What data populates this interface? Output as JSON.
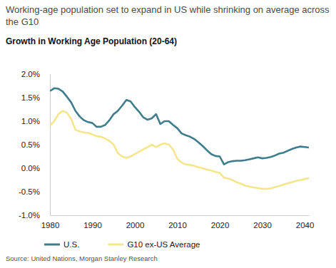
{
  "chart_data": {
    "type": "line",
    "title": "Working-age population set to expand in US while shrinking on average across the G10",
    "subtitle": "Growth in Working Age Population (20-64)",
    "source": "Source: United Nations, Morgan Stanley Research",
    "x": [
      1980,
      1981,
      1982,
      1983,
      1984,
      1985,
      1986,
      1987,
      1988,
      1989,
      1990,
      1991,
      1992,
      1993,
      1994,
      1995,
      1996,
      1997,
      1998,
      1999,
      2000,
      2001,
      2002,
      2003,
      2004,
      2005,
      2006,
      2007,
      2008,
      2009,
      2010,
      2011,
      2012,
      2013,
      2014,
      2015,
      2016,
      2017,
      2018,
      2019,
      2020,
      2021,
      2022,
      2023,
      2024,
      2025,
      2026,
      2027,
      2028,
      2029,
      2030,
      2031,
      2032,
      2033,
      2034,
      2035,
      2036,
      2037,
      2038,
      2039,
      2040,
      2041
    ],
    "series": [
      {
        "name": "U.S.",
        "color": "#3e7d8c",
        "values": [
          1.64,
          1.7,
          1.69,
          1.63,
          1.52,
          1.4,
          1.22,
          1.1,
          1.02,
          0.98,
          0.96,
          0.88,
          0.88,
          0.92,
          1.02,
          1.15,
          1.22,
          1.33,
          1.45,
          1.42,
          1.3,
          1.2,
          1.08,
          1.03,
          1.06,
          1.15,
          0.94,
          1.0,
          1.0,
          0.92,
          0.85,
          0.74,
          0.7,
          0.67,
          0.62,
          0.55,
          0.47,
          0.38,
          0.3,
          0.26,
          0.25,
          0.08,
          0.13,
          0.15,
          0.16,
          0.16,
          0.17,
          0.19,
          0.21,
          0.23,
          0.21,
          0.22,
          0.24,
          0.27,
          0.31,
          0.33,
          0.37,
          0.41,
          0.44,
          0.46,
          0.45,
          0.44
        ]
      },
      {
        "name": "G10 ex-US Average",
        "color": "#f3e68c",
        "values": [
          0.9,
          1.0,
          1.15,
          1.22,
          1.18,
          1.05,
          0.82,
          0.78,
          0.76,
          0.75,
          0.72,
          0.68,
          0.67,
          0.63,
          0.58,
          0.5,
          0.32,
          0.25,
          0.22,
          0.25,
          0.3,
          0.35,
          0.4,
          0.45,
          0.5,
          0.45,
          0.5,
          0.53,
          0.5,
          0.4,
          0.2,
          0.12,
          0.08,
          0.07,
          0.05,
          0.02,
          0.0,
          -0.03,
          -0.05,
          -0.08,
          -0.1,
          -0.2,
          -0.22,
          -0.25,
          -0.3,
          -0.33,
          -0.37,
          -0.39,
          -0.41,
          -0.42,
          -0.44,
          -0.44,
          -0.43,
          -0.4,
          -0.38,
          -0.35,
          -0.32,
          -0.3,
          -0.27,
          -0.25,
          -0.23,
          -0.21
        ]
      }
    ],
    "xlim": [
      1980,
      2041
    ],
    "xticks": [
      1980,
      1990,
      2000,
      2010,
      2020,
      2030,
      2040
    ],
    "ylim": [
      -1,
      2
    ],
    "yticks": [
      {
        "value": -1,
        "label": "-1.0%"
      },
      {
        "value": -0.5,
        "label": "-0.5%"
      },
      {
        "value": 0,
        "label": "0.0%"
      },
      {
        "value": 0.5,
        "label": "0.5%"
      },
      {
        "value": 1,
        "label": "1.0%"
      },
      {
        "value": 1.5,
        "label": "1.5%"
      },
      {
        "value": 2,
        "label": "2.0%"
      }
    ],
    "grid": false,
    "legend": "bottom"
  }
}
